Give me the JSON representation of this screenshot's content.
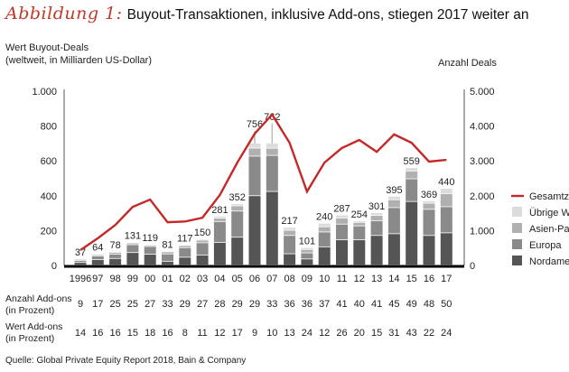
{
  "title": {
    "figure_label": "Abbildung 1:",
    "text": "Buyout-Transaktionen, inklusive Add-ons, stiegen 2017 weiter an"
  },
  "left_axis_label": [
    "Wert Buyout-Deals",
    "(weltweit, in Milliarden US-Dollar)"
  ],
  "right_axis_label": "Anzahl Deals",
  "row_labels": {
    "addons_count": [
      "Anzahl Add-ons",
      "(in Prozent)"
    ],
    "addons_value": [
      "Wert Add-ons",
      "(in Prozent)"
    ]
  },
  "source": "Quelle: Global Private Equity Report 2018, Bain & Company",
  "colors": {
    "line": "#c62828",
    "nordamerika": "#555555",
    "europa": "#8a8a8a",
    "asien_pazifik": "#b0b0b0",
    "uebrige_welt": "#dcdcdc",
    "axis": "#000000"
  },
  "chart_data": {
    "type": "bar+line",
    "title": "Buyout-Transaktionen, inklusive Add-ons, stiegen 2017 weiter an",
    "categories": [
      "1996",
      "97",
      "98",
      "99",
      "00",
      "01",
      "02",
      "03",
      "04",
      "05",
      "06",
      "07",
      "08",
      "09",
      "10",
      "11",
      "12",
      "13",
      "14",
      "15",
      "16",
      "17"
    ],
    "left_axis": {
      "label": "Wert Buyout-Deals (weltweit, in Milliarden US-Dollar)",
      "ylim": [
        0,
        1000
      ],
      "ticks": [
        0,
        200,
        400,
        600,
        800,
        1000
      ],
      "tick_labels": [
        "0",
        "200",
        "400",
        "600",
        "800",
        "1.000"
      ]
    },
    "right_axis": {
      "label": "Anzahl Deals",
      "ylim": [
        0,
        5000
      ],
      "ticks": [
        0,
        1000,
        2000,
        3000,
        4000,
        5000
      ],
      "tick_labels": [
        "0",
        "1.000",
        "2.000",
        "3.000",
        "4.000",
        "5.000"
      ]
    },
    "totals": [
      37,
      64,
      78,
      131,
      119,
      81,
      117,
      150,
      281,
      352,
      756,
      762,
      217,
      101,
      240,
      287,
      254,
      301,
      395,
      559,
      369,
      440
    ],
    "bar_cap": 700,
    "series": [
      {
        "name": "Nordamerika",
        "key": "nordamerika",
        "values": [
          15,
          32,
          38,
          72,
          62,
          22,
          45,
          58,
          130,
          160,
          430,
          460,
          65,
          35,
          105,
          145,
          145,
          170,
          180,
          365,
          170,
          185
        ]
      },
      {
        "name": "Europa",
        "key": "europa",
        "values": [
          12,
          20,
          25,
          45,
          45,
          42,
          55,
          70,
          120,
          150,
          245,
          225,
          105,
          35,
          85,
          90,
          80,
          85,
          150,
          130,
          150,
          150
        ]
      },
      {
        "name": "Asien-Pazifik",
        "key": "asien_pazifik",
        "values": [
          6,
          8,
          10,
          10,
          8,
          12,
          12,
          15,
          20,
          30,
          50,
          45,
          30,
          20,
          30,
          35,
          20,
          30,
          45,
          45,
          35,
          75
        ]
      },
      {
        "name": "Übrige Welt",
        "key": "uebrige_welt",
        "values": [
          4,
          4,
          5,
          4,
          4,
          5,
          5,
          7,
          11,
          12,
          31,
          32,
          17,
          11,
          20,
          17,
          9,
          16,
          20,
          19,
          14,
          30
        ]
      }
    ],
    "line": {
      "name": "Gesamtzahl",
      "axis": "right",
      "values": [
        440,
        780,
        1160,
        1680,
        1890,
        1240,
        1260,
        1370,
        2020,
        2950,
        3780,
        4330,
        3520,
        2120,
        2950,
        3370,
        3600,
        3260,
        3760,
        3520,
        2980,
        3030
      ]
    },
    "legend": [
      "Gesamtzahl",
      "Übrige Welt",
      "Asien-Pazifik",
      "Europa",
      "Nordamerika"
    ],
    "legend_visible_text": [
      "Gesamtzal",
      "Übrige We",
      "Asien-Pazi",
      "Europa",
      "Nordamer"
    ],
    "legend_position": "right",
    "addons_count_pct": [
      9,
      17,
      25,
      25,
      27,
      33,
      29,
      27,
      28,
      29,
      29,
      33,
      36,
      36,
      37,
      41,
      40,
      41,
      45,
      49,
      48,
      50
    ],
    "addons_value_pct": [
      14,
      16,
      16,
      15,
      18,
      16,
      8,
      11,
      12,
      17,
      9,
      10,
      13,
      24,
      12,
      26,
      20,
      15,
      31,
      43,
      22,
      24
    ],
    "grid": false
  }
}
